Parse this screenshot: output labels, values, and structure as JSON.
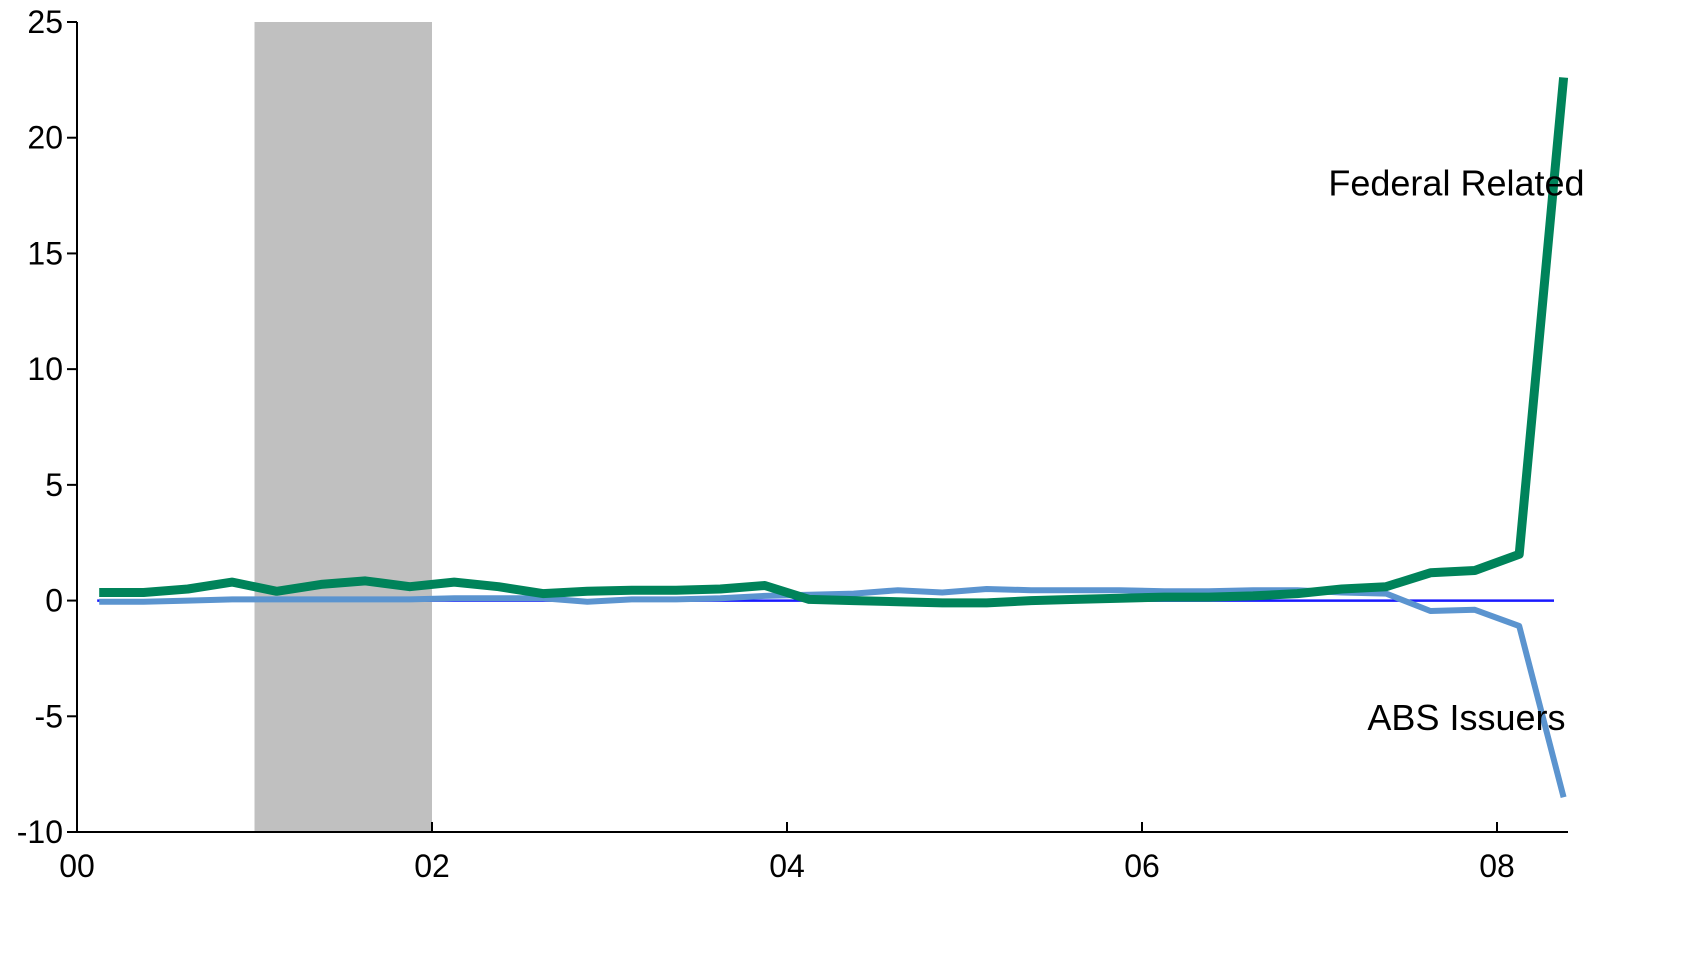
{
  "chart_data": {
    "type": "line",
    "title": "",
    "xlabel": "",
    "ylabel": "",
    "xlim": [
      0,
      8.4
    ],
    "ylim": [
      -10,
      25
    ],
    "x_ticks": [
      {
        "value": 0,
        "label": "00"
      },
      {
        "value": 2,
        "label": "02"
      },
      {
        "value": 4,
        "label": "04"
      },
      {
        "value": 6,
        "label": "06"
      },
      {
        "value": 8,
        "label": "08"
      }
    ],
    "y_ticks": [
      {
        "value": 25,
        "label": "25"
      },
      {
        "value": 20,
        "label": "20"
      },
      {
        "value": 15,
        "label": "15"
      },
      {
        "value": 10,
        "label": "10"
      },
      {
        "value": 5,
        "label": "5"
      },
      {
        "value": 0,
        "label": "0"
      },
      {
        "value": -5,
        "label": "-5"
      },
      {
        "value": -10,
        "label": "-10"
      }
    ],
    "grid": false,
    "legend": "none",
    "recession_band": {
      "x_start": 1.0,
      "x_end": 2.0,
      "color": "#c0c0c0"
    },
    "zero_line": {
      "y": 0,
      "color": "#1a1aff"
    },
    "series": [
      {
        "name": "Federal Related",
        "color": "#00835a",
        "x": [
          0.125,
          0.375,
          0.625,
          0.875,
          1.125,
          1.375,
          1.625,
          1.875,
          2.125,
          2.375,
          2.625,
          2.875,
          3.125,
          3.375,
          3.625,
          3.875,
          4.125,
          4.375,
          4.625,
          4.875,
          5.125,
          5.375,
          5.625,
          5.875,
          6.125,
          6.375,
          6.625,
          6.875,
          7.125,
          7.375,
          7.625,
          7.875,
          8.125,
          8.375
        ],
        "values": [
          0.35,
          0.35,
          0.5,
          0.8,
          0.4,
          0.7,
          0.85,
          0.6,
          0.8,
          0.6,
          0.3,
          0.4,
          0.45,
          0.45,
          0.5,
          0.65,
          0.05,
          0.0,
          -0.05,
          -0.1,
          -0.1,
          0.0,
          0.05,
          0.1,
          0.15,
          0.15,
          0.2,
          0.3,
          0.5,
          0.6,
          1.2,
          1.3,
          2.0,
          22.6
        ]
      },
      {
        "name": "ABS Issuers",
        "color": "#5b94cf",
        "x": [
          0.125,
          0.375,
          0.625,
          0.875,
          1.125,
          1.375,
          1.625,
          1.875,
          2.125,
          2.375,
          2.625,
          2.875,
          3.125,
          3.375,
          3.625,
          3.875,
          4.125,
          4.375,
          4.625,
          4.875,
          5.125,
          5.375,
          5.625,
          5.875,
          6.125,
          6.375,
          6.625,
          6.875,
          7.125,
          7.375,
          7.625,
          7.875,
          8.125,
          8.375
        ],
        "values": [
          -0.05,
          -0.05,
          0.0,
          0.05,
          0.05,
          0.05,
          0.05,
          0.05,
          0.1,
          0.1,
          0.1,
          -0.05,
          0.05,
          0.05,
          0.1,
          0.2,
          0.25,
          0.3,
          0.45,
          0.35,
          0.5,
          0.45,
          0.45,
          0.45,
          0.4,
          0.4,
          0.45,
          0.45,
          0.35,
          0.3,
          -0.45,
          -0.4,
          -1.1,
          -8.5
        ]
      }
    ],
    "annotations": [
      {
        "text": "Federal Related",
        "x": 7.05,
        "y": 17.5
      },
      {
        "text": "ABS Issuers",
        "x": 7.27,
        "y": -5.6
      }
    ]
  }
}
